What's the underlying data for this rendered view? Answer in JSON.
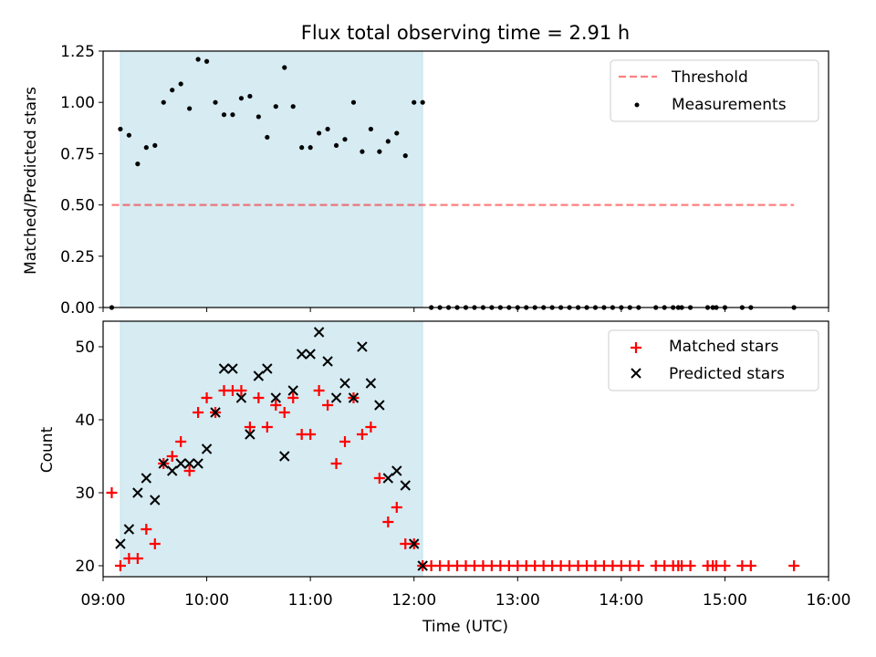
{
  "chart_data": [
    {
      "type": "scatter",
      "title": "Flux total observing time = 2.91 h",
      "ylabel": "Matched/Predicted stars",
      "xlabel": "",
      "xlim": [
        "09:00",
        "16:00"
      ],
      "ylim": [
        0.0,
        1.25
      ],
      "yticks": [
        "0.00",
        "0.25",
        "0.50",
        "0.75",
        "1.00",
        "1.25"
      ],
      "shaded_span": [
        "09:10",
        "12:05"
      ],
      "shade_color": "#add8e6",
      "legend_position": "top-right",
      "threshold": {
        "name": "Threshold",
        "y": 0.5,
        "x_range": [
          "09:05",
          "15:40"
        ],
        "color": "#ff0000",
        "style": "dashed"
      },
      "series": [
        {
          "name": "Measurements",
          "marker": "dot",
          "color": "#000000",
          "x": [
            "09:05",
            "09:10",
            "09:15",
            "09:20",
            "09:25",
            "09:30",
            "09:35",
            "09:40",
            "09:45",
            "09:50",
            "09:55",
            "10:00",
            "10:05",
            "10:10",
            "10:15",
            "10:20",
            "10:25",
            "10:30",
            "10:35",
            "10:40",
            "10:45",
            "10:50",
            "10:55",
            "11:00",
            "11:05",
            "11:10",
            "11:15",
            "11:20",
            "11:25",
            "11:30",
            "11:35",
            "11:40",
            "11:45",
            "11:50",
            "11:55",
            "12:00",
            "12:05",
            "12:10",
            "12:15",
            "12:20",
            "12:25",
            "12:30",
            "12:35",
            "12:40",
            "12:45",
            "12:50",
            "12:55",
            "13:00",
            "13:05",
            "13:10",
            "13:15",
            "13:20",
            "13:25",
            "13:30",
            "13:35",
            "13:40",
            "13:45",
            "13:50",
            "13:55",
            "14:00",
            "14:05",
            "14:10",
            "14:20",
            "14:25",
            "14:30",
            "14:33",
            "14:35",
            "14:40",
            "14:50",
            "14:53",
            "14:55",
            "15:00",
            "15:10",
            "15:15",
            "15:40"
          ],
          "y": [
            0.0,
            0.87,
            0.84,
            0.7,
            0.78,
            0.79,
            1.0,
            1.06,
            1.09,
            0.97,
            1.21,
            1.2,
            1.0,
            0.94,
            0.94,
            1.02,
            1.03,
            0.93,
            0.83,
            0.98,
            1.17,
            0.98,
            0.78,
            0.78,
            0.85,
            0.87,
            0.79,
            0.82,
            1.0,
            0.76,
            0.87,
            0.76,
            0.81,
            0.85,
            0.74,
            1.0,
            1.0,
            0.0,
            0.0,
            0.0,
            0.0,
            0.0,
            0.0,
            0.0,
            0.0,
            0.0,
            0.0,
            0.0,
            0.0,
            0.0,
            0.0,
            0.0,
            0.0,
            0.0,
            0.0,
            0.0,
            0.0,
            0.0,
            0.0,
            0.0,
            0.0,
            0.0,
            0.0,
            0.0,
            0.0,
            0.0,
            0.0,
            0.0,
            0.0,
            0.0,
            0.0,
            0.0,
            0.0,
            0.0,
            0.0
          ]
        }
      ]
    },
    {
      "type": "scatter",
      "title": "",
      "ylabel": "Count",
      "xlabel": "Time (UTC)",
      "xlim": [
        "09:00",
        "16:00"
      ],
      "xticks": [
        "09:00",
        "10:00",
        "11:00",
        "12:00",
        "13:00",
        "14:00",
        "15:00",
        "16:00"
      ],
      "ylim": [
        18.5,
        53.5
      ],
      "yticks": [
        "20",
        "30",
        "40",
        "50"
      ],
      "shaded_span": [
        "09:10",
        "12:05"
      ],
      "shade_color": "#add8e6",
      "legend_position": "top-right",
      "series": [
        {
          "name": "Matched stars",
          "marker": "plus",
          "color": "#ff0000",
          "x": [
            "09:05",
            "09:10",
            "09:15",
            "09:20",
            "09:25",
            "09:30",
            "09:35",
            "09:40",
            "09:45",
            "09:50",
            "09:55",
            "10:00",
            "10:05",
            "10:10",
            "10:15",
            "10:20",
            "10:25",
            "10:30",
            "10:35",
            "10:40",
            "10:45",
            "10:50",
            "10:55",
            "11:00",
            "11:05",
            "11:10",
            "11:15",
            "11:20",
            "11:25",
            "11:30",
            "11:35",
            "11:40",
            "11:45",
            "11:50",
            "11:55",
            "12:00",
            "12:05",
            "12:10",
            "12:15",
            "12:20",
            "12:25",
            "12:30",
            "12:35",
            "12:40",
            "12:45",
            "12:50",
            "12:55",
            "13:00",
            "13:05",
            "13:10",
            "13:15",
            "13:20",
            "13:25",
            "13:30",
            "13:35",
            "13:40",
            "13:45",
            "13:50",
            "13:55",
            "14:00",
            "14:05",
            "14:10",
            "14:20",
            "14:25",
            "14:30",
            "14:33",
            "14:35",
            "14:40",
            "14:50",
            "14:53",
            "14:55",
            "15:00",
            "15:10",
            "15:15",
            "15:40"
          ],
          "y": [
            30,
            20,
            21,
            21,
            25,
            23,
            34,
            35,
            37,
            33,
            41,
            43,
            41,
            44,
            44,
            44,
            39,
            43,
            39,
            42,
            41,
            43,
            38,
            38,
            44,
            42,
            34,
            37,
            43,
            38,
            39,
            32,
            26,
            28,
            23,
            23,
            20,
            20,
            20,
            20,
            20,
            20,
            20,
            20,
            20,
            20,
            20,
            20,
            20,
            20,
            20,
            20,
            20,
            20,
            20,
            20,
            20,
            20,
            20,
            20,
            20,
            20,
            20,
            20,
            20,
            20,
            20,
            20,
            20,
            20,
            20,
            20,
            20,
            20,
            20
          ]
        },
        {
          "name": "Predicted stars",
          "marker": "x",
          "color": "#000000",
          "x": [
            "09:10",
            "09:15",
            "09:20",
            "09:25",
            "09:30",
            "09:35",
            "09:40",
            "09:45",
            "09:50",
            "09:55",
            "10:00",
            "10:05",
            "10:10",
            "10:15",
            "10:20",
            "10:25",
            "10:30",
            "10:35",
            "10:40",
            "10:45",
            "10:50",
            "10:55",
            "11:00",
            "11:05",
            "11:10",
            "11:15",
            "11:20",
            "11:25",
            "11:30",
            "11:35",
            "11:40",
            "11:45",
            "11:50",
            "11:55",
            "12:00",
            "12:05"
          ],
          "y": [
            23,
            25,
            30,
            32,
            29,
            34,
            33,
            34,
            34,
            34,
            36,
            41,
            47,
            47,
            43,
            38,
            46,
            47,
            43,
            35,
            44,
            49,
            49,
            52,
            48,
            43,
            45,
            43,
            50,
            45,
            42,
            32,
            33,
            31,
            23,
            20
          ]
        }
      ]
    }
  ]
}
